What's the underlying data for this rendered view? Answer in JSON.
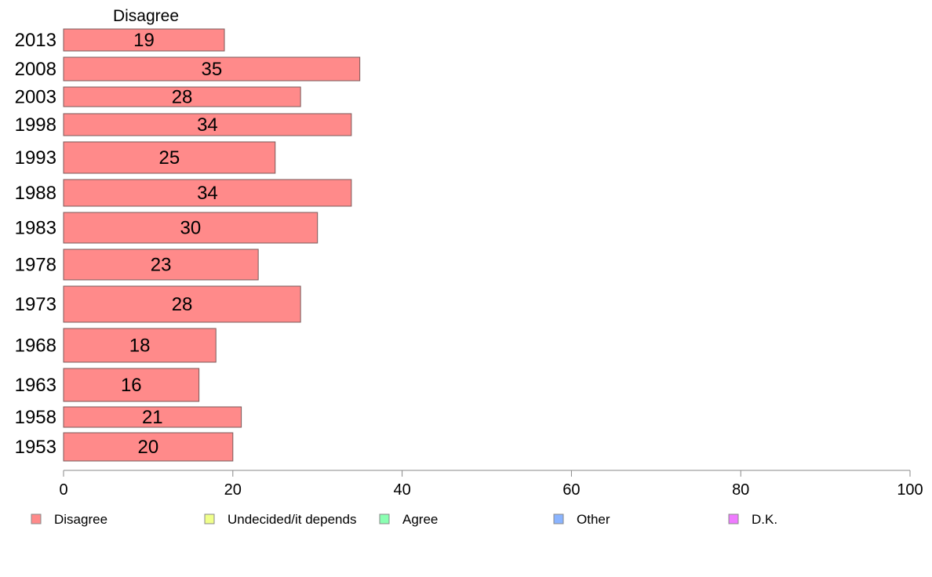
{
  "chart_data": {
    "type": "bar",
    "orientation": "horizontal",
    "column_header": "Disagree",
    "categories": [
      "2013",
      "2008",
      "2003",
      "1998",
      "1993",
      "1988",
      "1983",
      "1978",
      "1973",
      "1968",
      "1963",
      "1958",
      "1953"
    ],
    "series": [
      {
        "name": "Disagree",
        "color": "#ff8a8a",
        "values": [
          19,
          35,
          28,
          34,
          25,
          34,
          30,
          23,
          28,
          18,
          16,
          21,
          20
        ]
      }
    ],
    "xlim": [
      0,
      100
    ],
    "xticks": [
      0,
      20,
      40,
      60,
      80,
      100
    ],
    "grid": false,
    "legend_position": "bottom",
    "legend": [
      {
        "label": "Disagree",
        "color": "#ff8a8a"
      },
      {
        "label": "Undecided/it depends",
        "color": "#f0ff8a"
      },
      {
        "label": "Agree",
        "color": "#8affb2"
      },
      {
        "label": "Other",
        "color": "#8ab4ff"
      },
      {
        "label": "D.K.",
        "color": "#ef7aff"
      }
    ]
  }
}
